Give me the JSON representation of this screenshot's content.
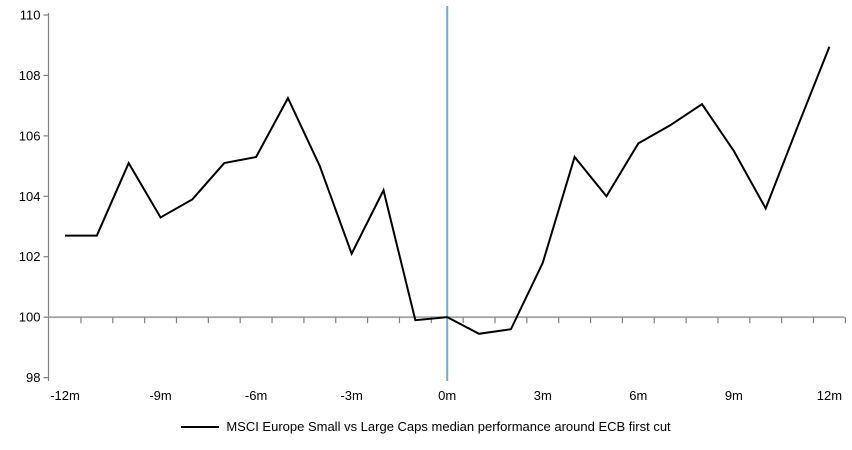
{
  "chart_data": {
    "type": "line",
    "title": "",
    "legend": "MSCI Europe Small vs Large Caps median performance around ECB first cut",
    "xlabel": "",
    "ylabel": "",
    "x": [
      -12,
      -11,
      -10,
      -9,
      -8,
      -7,
      -6,
      -5,
      -4,
      -3,
      -2,
      -1,
      0,
      1,
      2,
      3,
      4,
      5,
      6,
      7,
      8,
      9,
      10,
      11,
      12
    ],
    "values": [
      102.7,
      102.7,
      105.1,
      103.3,
      103.9,
      105.1,
      105.3,
      107.25,
      105.0,
      102.1,
      104.2,
      99.9,
      100.0,
      99.45,
      99.6,
      101.8,
      105.3,
      104.0,
      105.75,
      106.35,
      107.05,
      105.5,
      103.6,
      106.3,
      108.95
    ],
    "xticks": [
      -12,
      -9,
      -6,
      -3,
      0,
      3,
      6,
      9,
      12
    ],
    "xtick_labels": [
      "-12m",
      "-9m",
      "-6m",
      "-3m",
      "0m",
      "3m",
      "6m",
      "9m",
      "12m"
    ],
    "yticks": [
      110,
      108,
      106,
      104,
      102,
      100,
      98
    ],
    "ylim": [
      98,
      110
    ],
    "xlim": [
      -12,
      12
    ],
    "baseline_value": 100,
    "event_line_month": 0,
    "grid": "single horizontal gridline at baseline 100 only",
    "legend_position": "bottom-center"
  },
  "colors": {
    "series": "#000000",
    "event_line": "#7da7d1",
    "gridline": "#a6a6a6",
    "axis": "#808080",
    "text": "#000000",
    "background": "#ffffff"
  }
}
